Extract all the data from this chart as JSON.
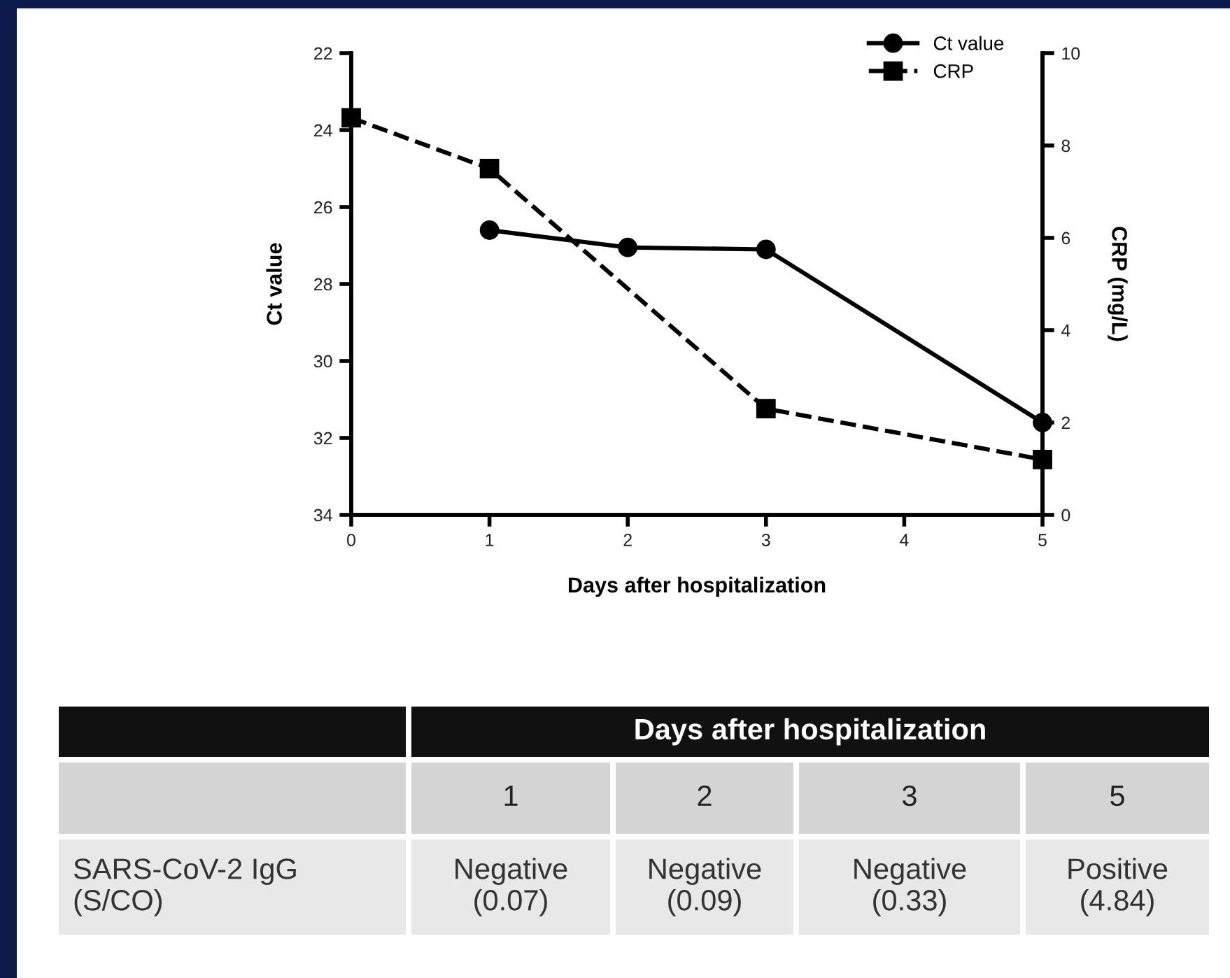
{
  "chart_data": {
    "type": "line",
    "xlabel": "Days after hospitalization",
    "ylabel": "Ct value",
    "y2label": "CRP (mg/L)",
    "xlim": [
      0,
      5
    ],
    "xticks": [
      0,
      1,
      2,
      3,
      4,
      5
    ],
    "ylim": [
      34,
      22
    ],
    "yticks": [
      22,
      24,
      26,
      28,
      30,
      32,
      34
    ],
    "y2lim": [
      0,
      10
    ],
    "y2ticks": [
      0,
      2,
      4,
      6,
      8,
      10
    ],
    "series": [
      {
        "name": "Ct value",
        "color": "#000000",
        "x": [
          1,
          2,
          3,
          5
        ],
        "values": [
          26.6,
          27.05,
          27.1,
          31.6
        ],
        "marker": "circle",
        "line_style": "solid"
      },
      {
        "name": "CRP",
        "color": "#000000",
        "x": [
          0,
          1,
          3,
          5
        ],
        "values": [
          8.6,
          7.5,
          2.3,
          1.2
        ],
        "marker": "square",
        "line_style": "dashed",
        "axis": "y2"
      }
    ],
    "legend": "top right",
    "grid": false,
    "annotations": [
      "Days after hospitalization",
      "1",
      "2",
      "3",
      "5",
      "SARS-CoV-2 IgG\n(S/CO)",
      "Negative\n(0.07)",
      "Negative\n(0.09)",
      "Negative\n(0.33)",
      "Positive\n(4.84)"
    ]
  }
}
